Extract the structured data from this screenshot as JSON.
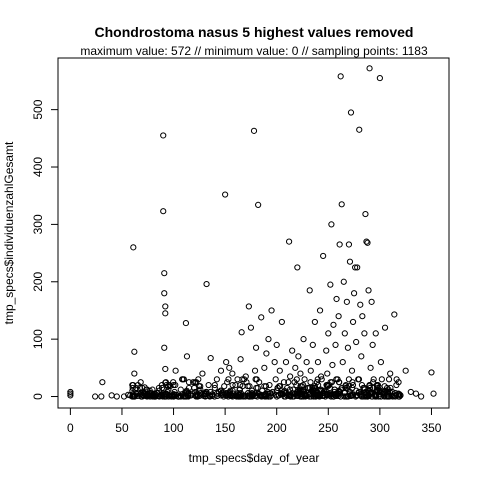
{
  "chart_data": {
    "type": "scatter",
    "title": "Chondrostoma nasus  5 highest values removed",
    "subtitle": "maximum value: 572  //  minimum value: 0  // sampling points: 1183",
    "xlabel": "tmp_specs$day_of_year",
    "ylabel": "tmp_specs$individuenzahlGesamt",
    "xlim": [
      -12,
      367
    ],
    "ylim": [
      -20,
      590
    ],
    "x_ticks": [
      0,
      50,
      100,
      150,
      200,
      250,
      300,
      350
    ],
    "y_ticks": [
      0,
      100,
      200,
      300,
      400,
      500
    ],
    "grid": false,
    "legend": "none",
    "points_count_note": "approximate reading of dense cluster",
    "points": [
      [
        0,
        5
      ],
      [
        0,
        8
      ],
      [
        0,
        2
      ],
      [
        24,
        0
      ],
      [
        30,
        0
      ],
      [
        31,
        25
      ],
      [
        40,
        2
      ],
      [
        45,
        0
      ],
      [
        52,
        0
      ],
      [
        56,
        3
      ],
      [
        58,
        2
      ],
      [
        60,
        0
      ],
      [
        61,
        260
      ],
      [
        62,
        78
      ],
      [
        62,
        40
      ],
      [
        63,
        12
      ],
      [
        64,
        5
      ],
      [
        69,
        0
      ],
      [
        72,
        16
      ],
      [
        75,
        5
      ],
      [
        79,
        2
      ],
      [
        82,
        0
      ],
      [
        86,
        10
      ],
      [
        88,
        2
      ],
      [
        90,
        455
      ],
      [
        90,
        323
      ],
      [
        91,
        215
      ],
      [
        91,
        180
      ],
      [
        92,
        157
      ],
      [
        92,
        145
      ],
      [
        91,
        85
      ],
      [
        92,
        48
      ],
      [
        92,
        24
      ],
      [
        93,
        5
      ],
      [
        95,
        12
      ],
      [
        96,
        2
      ],
      [
        98,
        0
      ],
      [
        100,
        20
      ],
      [
        101,
        8
      ],
      [
        102,
        45
      ],
      [
        103,
        3
      ],
      [
        105,
        0
      ],
      [
        107,
        12
      ],
      [
        110,
        30
      ],
      [
        111,
        5
      ],
      [
        112,
        128
      ],
      [
        113,
        70
      ],
      [
        115,
        15
      ],
      [
        117,
        2
      ],
      [
        119,
        25
      ],
      [
        121,
        8
      ],
      [
        123,
        0
      ],
      [
        124,
        30
      ],
      [
        126,
        12
      ],
      [
        128,
        40
      ],
      [
        130,
        5
      ],
      [
        132,
        196
      ],
      [
        134,
        20
      ],
      [
        136,
        67
      ],
      [
        138,
        2
      ],
      [
        140,
        15
      ],
      [
        142,
        30
      ],
      [
        144,
        8
      ],
      [
        146,
        45
      ],
      [
        148,
        3
      ],
      [
        150,
        352
      ],
      [
        151,
        60
      ],
      [
        152,
        25
      ],
      [
        154,
        50
      ],
      [
        155,
        10
      ],
      [
        157,
        40
      ],
      [
        158,
        5
      ],
      [
        160,
        20
      ],
      [
        162,
        30
      ],
      [
        164,
        12
      ],
      [
        165,
        65
      ],
      [
        166,
        112
      ],
      [
        168,
        2
      ],
      [
        170,
        35
      ],
      [
        172,
        18
      ],
      [
        173,
        157
      ],
      [
        175,
        120
      ],
      [
        176,
        6
      ],
      [
        178,
        463
      ],
      [
        179,
        45
      ],
      [
        180,
        85
      ],
      [
        182,
        334
      ],
      [
        183,
        25
      ],
      [
        185,
        138
      ],
      [
        186,
        10
      ],
      [
        188,
        50
      ],
      [
        189,
        3
      ],
      [
        190,
        75
      ],
      [
        192,
        100
      ],
      [
        193,
        20
      ],
      [
        195,
        150
      ],
      [
        196,
        8
      ],
      [
        198,
        60
      ],
      [
        199,
        30
      ],
      [
        200,
        90
      ],
      [
        201,
        15
      ],
      [
        203,
        45
      ],
      [
        204,
        5
      ],
      [
        205,
        130
      ],
      [
        207,
        25
      ],
      [
        209,
        60
      ],
      [
        210,
        2
      ],
      [
        212,
        270
      ],
      [
        213,
        35
      ],
      [
        215,
        80
      ],
      [
        216,
        12
      ],
      [
        218,
        50
      ],
      [
        219,
        20
      ],
      [
        220,
        225
      ],
      [
        221,
        70
      ],
      [
        223,
        40
      ],
      [
        224,
        8
      ],
      [
        226,
        100
      ],
      [
        227,
        30
      ],
      [
        229,
        60
      ],
      [
        230,
        15
      ],
      [
        232,
        185
      ],
      [
        233,
        45
      ],
      [
        235,
        90
      ],
      [
        236,
        5
      ],
      [
        237,
        130
      ],
      [
        239,
        25
      ],
      [
        240,
        60
      ],
      [
        242,
        150
      ],
      [
        243,
        35
      ],
      [
        245,
        245
      ],
      [
        246,
        10
      ],
      [
        248,
        80
      ],
      [
        249,
        40
      ],
      [
        250,
        110
      ],
      [
        251,
        20
      ],
      [
        252,
        195
      ],
      [
        253,
        300
      ],
      [
        254,
        55
      ],
      [
        255,
        125
      ],
      [
        256,
        8
      ],
      [
        257,
        90
      ],
      [
        258,
        170
      ],
      [
        259,
        30
      ],
      [
        260,
        140
      ],
      [
        261,
        265
      ],
      [
        262,
        558
      ],
      [
        263,
        335
      ],
      [
        264,
        60
      ],
      [
        265,
        200
      ],
      [
        266,
        110
      ],
      [
        267,
        20
      ],
      [
        268,
        165
      ],
      [
        269,
        85
      ],
      [
        270,
        265
      ],
      [
        271,
        235
      ],
      [
        272,
        495
      ],
      [
        273,
        45
      ],
      [
        274,
        130
      ],
      [
        275,
        180
      ],
      [
        276,
        225
      ],
      [
        277,
        95
      ],
      [
        278,
        225
      ],
      [
        279,
        30
      ],
      [
        280,
        465
      ],
      [
        281,
        160
      ],
      [
        282,
        70
      ],
      [
        283,
        140
      ],
      [
        284,
        15
      ],
      [
        285,
        110
      ],
      [
        286,
        318
      ],
      [
        287,
        270
      ],
      [
        288,
        268
      ],
      [
        289,
        185
      ],
      [
        290,
        572
      ],
      [
        291,
        50
      ],
      [
        292,
        165
      ],
      [
        293,
        90
      ],
      [
        294,
        30
      ],
      [
        296,
        110
      ],
      [
        298,
        20
      ],
      [
        300,
        555
      ],
      [
        301,
        60
      ],
      [
        303,
        5
      ],
      [
        305,
        120
      ],
      [
        307,
        15
      ],
      [
        310,
        40
      ],
      [
        312,
        8
      ],
      [
        314,
        143
      ],
      [
        316,
        20
      ],
      [
        318,
        5
      ],
      [
        320,
        2
      ],
      [
        325,
        45
      ],
      [
        330,
        8
      ],
      [
        335,
        5
      ],
      [
        340,
        0
      ],
      [
        350,
        42
      ],
      [
        352,
        5
      ]
    ],
    "dense_band": {
      "description": "many overlapping circles near y=0 between x=55 and x=320",
      "x_range": [
        60,
        320
      ],
      "y_values": [
        0,
        1,
        2,
        3,
        4,
        5,
        6,
        8,
        10,
        12,
        15,
        18,
        20,
        25,
        30
      ]
    }
  }
}
